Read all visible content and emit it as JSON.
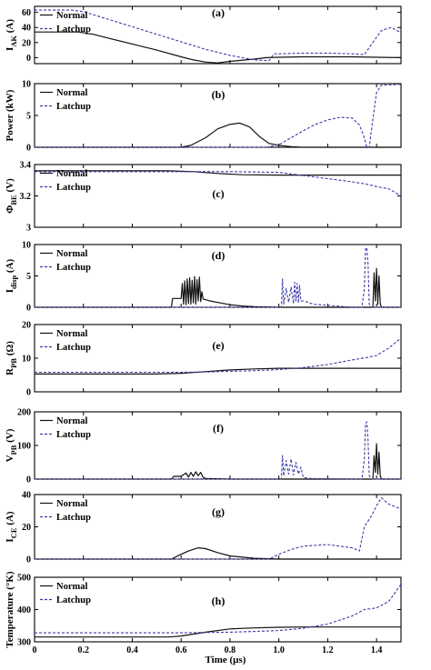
{
  "chart_data": {
    "type": "line",
    "xlabel": "Time (µs)",
    "xlim": [
      0,
      1.5
    ],
    "xticks": [
      0,
      0.2,
      0.4,
      0.6,
      0.8,
      1.0,
      1.2,
      1.4
    ],
    "xtick_labels": [
      "0",
      "0.2",
      "0.4",
      "0.6",
      "0.8",
      "1.0",
      "1.2",
      "1.4"
    ],
    "legend": [
      "Normal",
      "Latchup"
    ],
    "series_style": {
      "Normal": {
        "color": "#111111",
        "dash": "solid"
      },
      "Latchup": {
        "color": "#3a3aa8",
        "dash": "dashed"
      }
    },
    "panels": [
      {
        "label": "(a)",
        "ylabel": "I_AK (A)",
        "ylabel_main": "I",
        "ylabel_sub": "AK",
        "ylabel_tail": " (A)",
        "ylim": [
          -8,
          68
        ],
        "yticks": [
          0,
          20,
          40,
          60
        ],
        "ytick_labels": [
          "0",
          "20",
          "40",
          "60"
        ],
        "series": [
          {
            "name": "Normal",
            "x": [
              0,
              0.18,
              0.24,
              0.3,
              0.4,
              0.5,
              0.6,
              0.65,
              0.7,
              0.75,
              0.8,
              0.9,
              0.95,
              1.0,
              1.1,
              1.2,
              1.3,
              1.4,
              1.5
            ],
            "y": [
              34,
              34,
              31,
              26,
              18,
              10,
              1,
              -3,
              -6,
              -7,
              -5,
              -2,
              0,
              0.5,
              1,
              1,
              1,
              0.5,
              0
            ]
          },
          {
            "name": "Latchup",
            "x": [
              0,
              0.15,
              0.2,
              0.3,
              0.4,
              0.5,
              0.6,
              0.7,
              0.8,
              0.9,
              0.96,
              0.98,
              1.0,
              1.1,
              1.2,
              1.3,
              1.35,
              1.38,
              1.42,
              1.46,
              1.5
            ],
            "y": [
              63,
              63,
              61,
              51,
              41,
              31,
              21,
              11,
              3,
              -3,
              -4,
              5,
              5,
              6,
              6,
              5,
              4,
              18,
              36,
              40,
              33
            ]
          }
        ]
      },
      {
        "label": "(b)",
        "ylabel": "Power (kW)",
        "ylabel_main": "Power (kW)",
        "ylabel_sub": "",
        "ylabel_tail": "",
        "ylim": [
          0,
          10
        ],
        "yticks": [
          0,
          5,
          10
        ],
        "ytick_labels": [
          "0",
          "5",
          "10"
        ],
        "series": [
          {
            "name": "Normal",
            "x": [
              0,
              0.6,
              0.64,
              0.7,
              0.75,
              0.8,
              0.84,
              0.88,
              0.92,
              0.96,
              1.0,
              1.05,
              1.1,
              1.5
            ],
            "y": [
              0,
              0,
              0.3,
              1.5,
              2.9,
              3.6,
              3.8,
              3.2,
              1.7,
              0.6,
              0.3,
              0.1,
              0,
              0
            ]
          },
          {
            "name": "Latchup",
            "x": [
              0,
              0.95,
              1.0,
              1.05,
              1.1,
              1.15,
              1.2,
              1.25,
              1.3,
              1.33,
              1.35,
              1.36,
              1.37,
              1.38,
              1.4,
              1.42,
              1.45,
              1.5
            ],
            "y": [
              0,
              0,
              0.4,
              1.5,
              2.6,
              3.6,
              4.3,
              4.7,
              4.6,
              3.5,
              1.5,
              0,
              0,
              3.0,
              8.6,
              9.8,
              9.8,
              9.9
            ]
          }
        ]
      },
      {
        "label": "(c)",
        "ylabel": "Φ_BE (V)",
        "ylabel_main": "Φ",
        "ylabel_sub": "BE",
        "ylabel_tail": " (V)",
        "ylim": [
          3,
          3.4
        ],
        "yticks": [
          3,
          3.2,
          3.4
        ],
        "ytick_labels": [
          "3",
          "3.2",
          "3.4"
        ],
        "series": [
          {
            "name": "Normal",
            "x": [
              0,
              0.55,
              0.65,
              0.75,
              0.85,
              1.0,
              1.5
            ],
            "y": [
              3.36,
              3.36,
              3.355,
              3.343,
              3.335,
              3.333,
              3.333
            ]
          },
          {
            "name": "Latchup",
            "x": [
              0,
              0.6,
              0.8,
              1.0,
              1.1,
              1.2,
              1.3,
              1.36,
              1.4,
              1.45,
              1.5
            ],
            "y": [
              3.355,
              3.355,
              3.355,
              3.35,
              3.33,
              3.31,
              3.29,
              3.275,
              3.26,
              3.245,
              3.2
            ]
          }
        ]
      },
      {
        "label": "(d)",
        "ylabel": "I_disp (A)",
        "ylabel_main": "I",
        "ylabel_sub": "disp",
        "ylabel_tail": " (A)",
        "ylim": [
          0,
          10
        ],
        "yticks": [
          0,
          5,
          10
        ],
        "ytick_labels": [
          "0",
          "5",
          "10"
        ],
        "series": [
          {
            "name": "Normal",
            "x": [
              0,
              0.56,
              0.565,
              0.6,
              0.605,
              0.61,
              0.615,
              0.62,
              0.625,
              0.63,
              0.635,
              0.64,
              0.645,
              0.65,
              0.655,
              0.66,
              0.665,
              0.67,
              0.675,
              0.68,
              0.685,
              0.69,
              0.7,
              0.72,
              0.76,
              0.8,
              0.85,
              0.9,
              1.0,
              1.385,
              1.39,
              1.395,
              1.4,
              1.405,
              1.41,
              1.415,
              1.42,
              1.5
            ],
            "y": [
              0,
              0,
              1.4,
              1.4,
              3.8,
              0.5,
              4.2,
              0.4,
              4.5,
              0.6,
              4.7,
              0.5,
              4.3,
              0.7,
              4.9,
              0.5,
              4.4,
              1.0,
              4.8,
              0.9,
              2.5,
              1.3,
              1.2,
              1.0,
              0.7,
              0.4,
              0.2,
              0.1,
              0,
              0,
              5.5,
              1.0,
              6.2,
              0.5,
              5.0,
              0.6,
              0,
              0
            ]
          },
          {
            "name": "Latchup",
            "x": [
              0,
              1.01,
              1.015,
              1.02,
              1.03,
              1.04,
              1.05,
              1.06,
              1.065,
              1.07,
              1.075,
              1.08,
              1.085,
              1.09,
              1.1,
              1.12,
              1.14,
              1.3,
              1.34,
              1.35,
              1.355,
              1.36,
              1.365,
              1.37,
              1.38,
              1.5
            ],
            "y": [
              0,
              0,
              4.5,
              0.5,
              3.0,
              0.8,
              3.2,
              0.6,
              4.0,
              1.0,
              3.8,
              0.7,
              3.5,
              1.0,
              1.0,
              0.8,
              0.5,
              0,
              0,
              3.0,
              9.5,
              9.4,
              7.0,
              0.5,
              0,
              0
            ]
          }
        ]
      },
      {
        "label": "(e)",
        "ylabel": "R_PB (Ω)",
        "ylabel_main": "R",
        "ylabel_sub": "PB",
        "ylabel_tail": " (Ω)",
        "ylim": [
          0,
          20
        ],
        "yticks": [
          0,
          10,
          20
        ],
        "ytick_labels": [
          "0",
          "10",
          "20"
        ],
        "series": [
          {
            "name": "Normal",
            "x": [
              0,
              0.5,
              0.6,
              0.7,
              0.8,
              0.9,
              1.0,
              1.1,
              1.5
            ],
            "y": [
              5.3,
              5.3,
              5.5,
              6.0,
              6.5,
              6.8,
              7.0,
              7.0,
              7.0
            ]
          },
          {
            "name": "Latchup",
            "x": [
              0,
              0.5,
              0.6,
              0.7,
              0.8,
              0.9,
              1.0,
              1.1,
              1.2,
              1.3,
              1.36,
              1.4,
              1.45,
              1.5
            ],
            "y": [
              5.8,
              5.8,
              5.8,
              5.9,
              6.1,
              6.3,
              6.6,
              7.2,
              8.1,
              9.5,
              10.2,
              10.8,
              13.0,
              16.0
            ]
          }
        ]
      },
      {
        "label": "(f)",
        "ylabel": "V_PB (V)",
        "ylabel_main": "V",
        "ylabel_sub": "PB",
        "ylabel_tail": " (V)",
        "ylim": [
          0,
          200
        ],
        "yticks": [
          0,
          100,
          200
        ],
        "ytick_labels": [
          "0",
          "100",
          "200"
        ],
        "series": [
          {
            "name": "Normal",
            "x": [
              0,
              0.56,
              0.57,
              0.6,
              0.62,
              0.63,
              0.64,
              0.65,
              0.66,
              0.67,
              0.68,
              0.69,
              0.7,
              0.8,
              1.385,
              1.39,
              1.395,
              1.4,
              1.405,
              1.41,
              1.415,
              1.42,
              1.5
            ],
            "y": [
              0,
              0,
              8,
              8,
              18,
              6,
              20,
              8,
              22,
              10,
              20,
              5,
              2,
              0,
              0,
              70,
              20,
              105,
              15,
              80,
              10,
              0,
              0
            ]
          },
          {
            "name": "Latchup",
            "x": [
              0,
              1.01,
              1.015,
              1.02,
              1.03,
              1.04,
              1.05,
              1.06,
              1.07,
              1.08,
              1.09,
              1.1,
              1.12,
              1.3,
              1.34,
              1.35,
              1.355,
              1.36,
              1.365,
              1.37,
              1.38,
              1.5
            ],
            "y": [
              0,
              0,
              70,
              10,
              55,
              15,
              60,
              12,
              50,
              15,
              35,
              5,
              2,
              0,
              0,
              60,
              165,
              170,
              120,
              10,
              0,
              0
            ]
          }
        ]
      },
      {
        "label": "(g)",
        "ylabel": "I_CE (A)",
        "ylabel_main": "I",
        "ylabel_sub": "CE",
        "ylabel_tail": " (A)",
        "ylim": [
          0,
          40
        ],
        "yticks": [
          0,
          20,
          40
        ],
        "ytick_labels": [
          "0",
          "20",
          "40"
        ],
        "series": [
          {
            "name": "Normal",
            "x": [
              0,
              0.56,
              0.6,
              0.63,
              0.67,
              0.7,
              0.75,
              0.8,
              0.9,
              1.0,
              1.1,
              1.2,
              1.5
            ],
            "y": [
              0,
              0,
              3,
              5,
              7,
              6.5,
              4,
              2,
              0.5,
              0,
              0,
              0,
              0
            ]
          },
          {
            "name": "Latchup",
            "x": [
              0,
              0.96,
              1.0,
              1.05,
              1.1,
              1.2,
              1.3,
              1.33,
              1.35,
              1.38,
              1.4,
              1.42,
              1.45,
              1.5
            ],
            "y": [
              0,
              0,
              3,
              6,
              8,
              9,
              7,
              5,
              20,
              27,
              33,
              38,
              34,
              31
            ]
          }
        ]
      },
      {
        "label": "(h)",
        "ylabel": "Temperature (°K)",
        "ylabel_main": "Temperature (°K)",
        "ylabel_sub": "",
        "ylabel_tail": "",
        "ylim": [
          300,
          500
        ],
        "yticks": [
          300,
          400,
          500
        ],
        "ytick_labels": [
          "300",
          "400",
          "500"
        ],
        "series": [
          {
            "name": "Normal",
            "x": [
              0,
              0.55,
              0.6,
              0.7,
              0.8,
              0.9,
              1.0,
              1.1,
              1.5
            ],
            "y": [
              315,
              315,
              318,
              330,
              340,
              343,
              345,
              346,
              346
            ]
          },
          {
            "name": "Latchup",
            "x": [
              0,
              0.6,
              0.8,
              0.9,
              1.0,
              1.1,
              1.2,
              1.3,
              1.35,
              1.4,
              1.45,
              1.5
            ],
            "y": [
              328,
              328,
              330,
              332,
              335,
              342,
              355,
              380,
              400,
              405,
              425,
              478
            ]
          }
        ]
      }
    ]
  }
}
